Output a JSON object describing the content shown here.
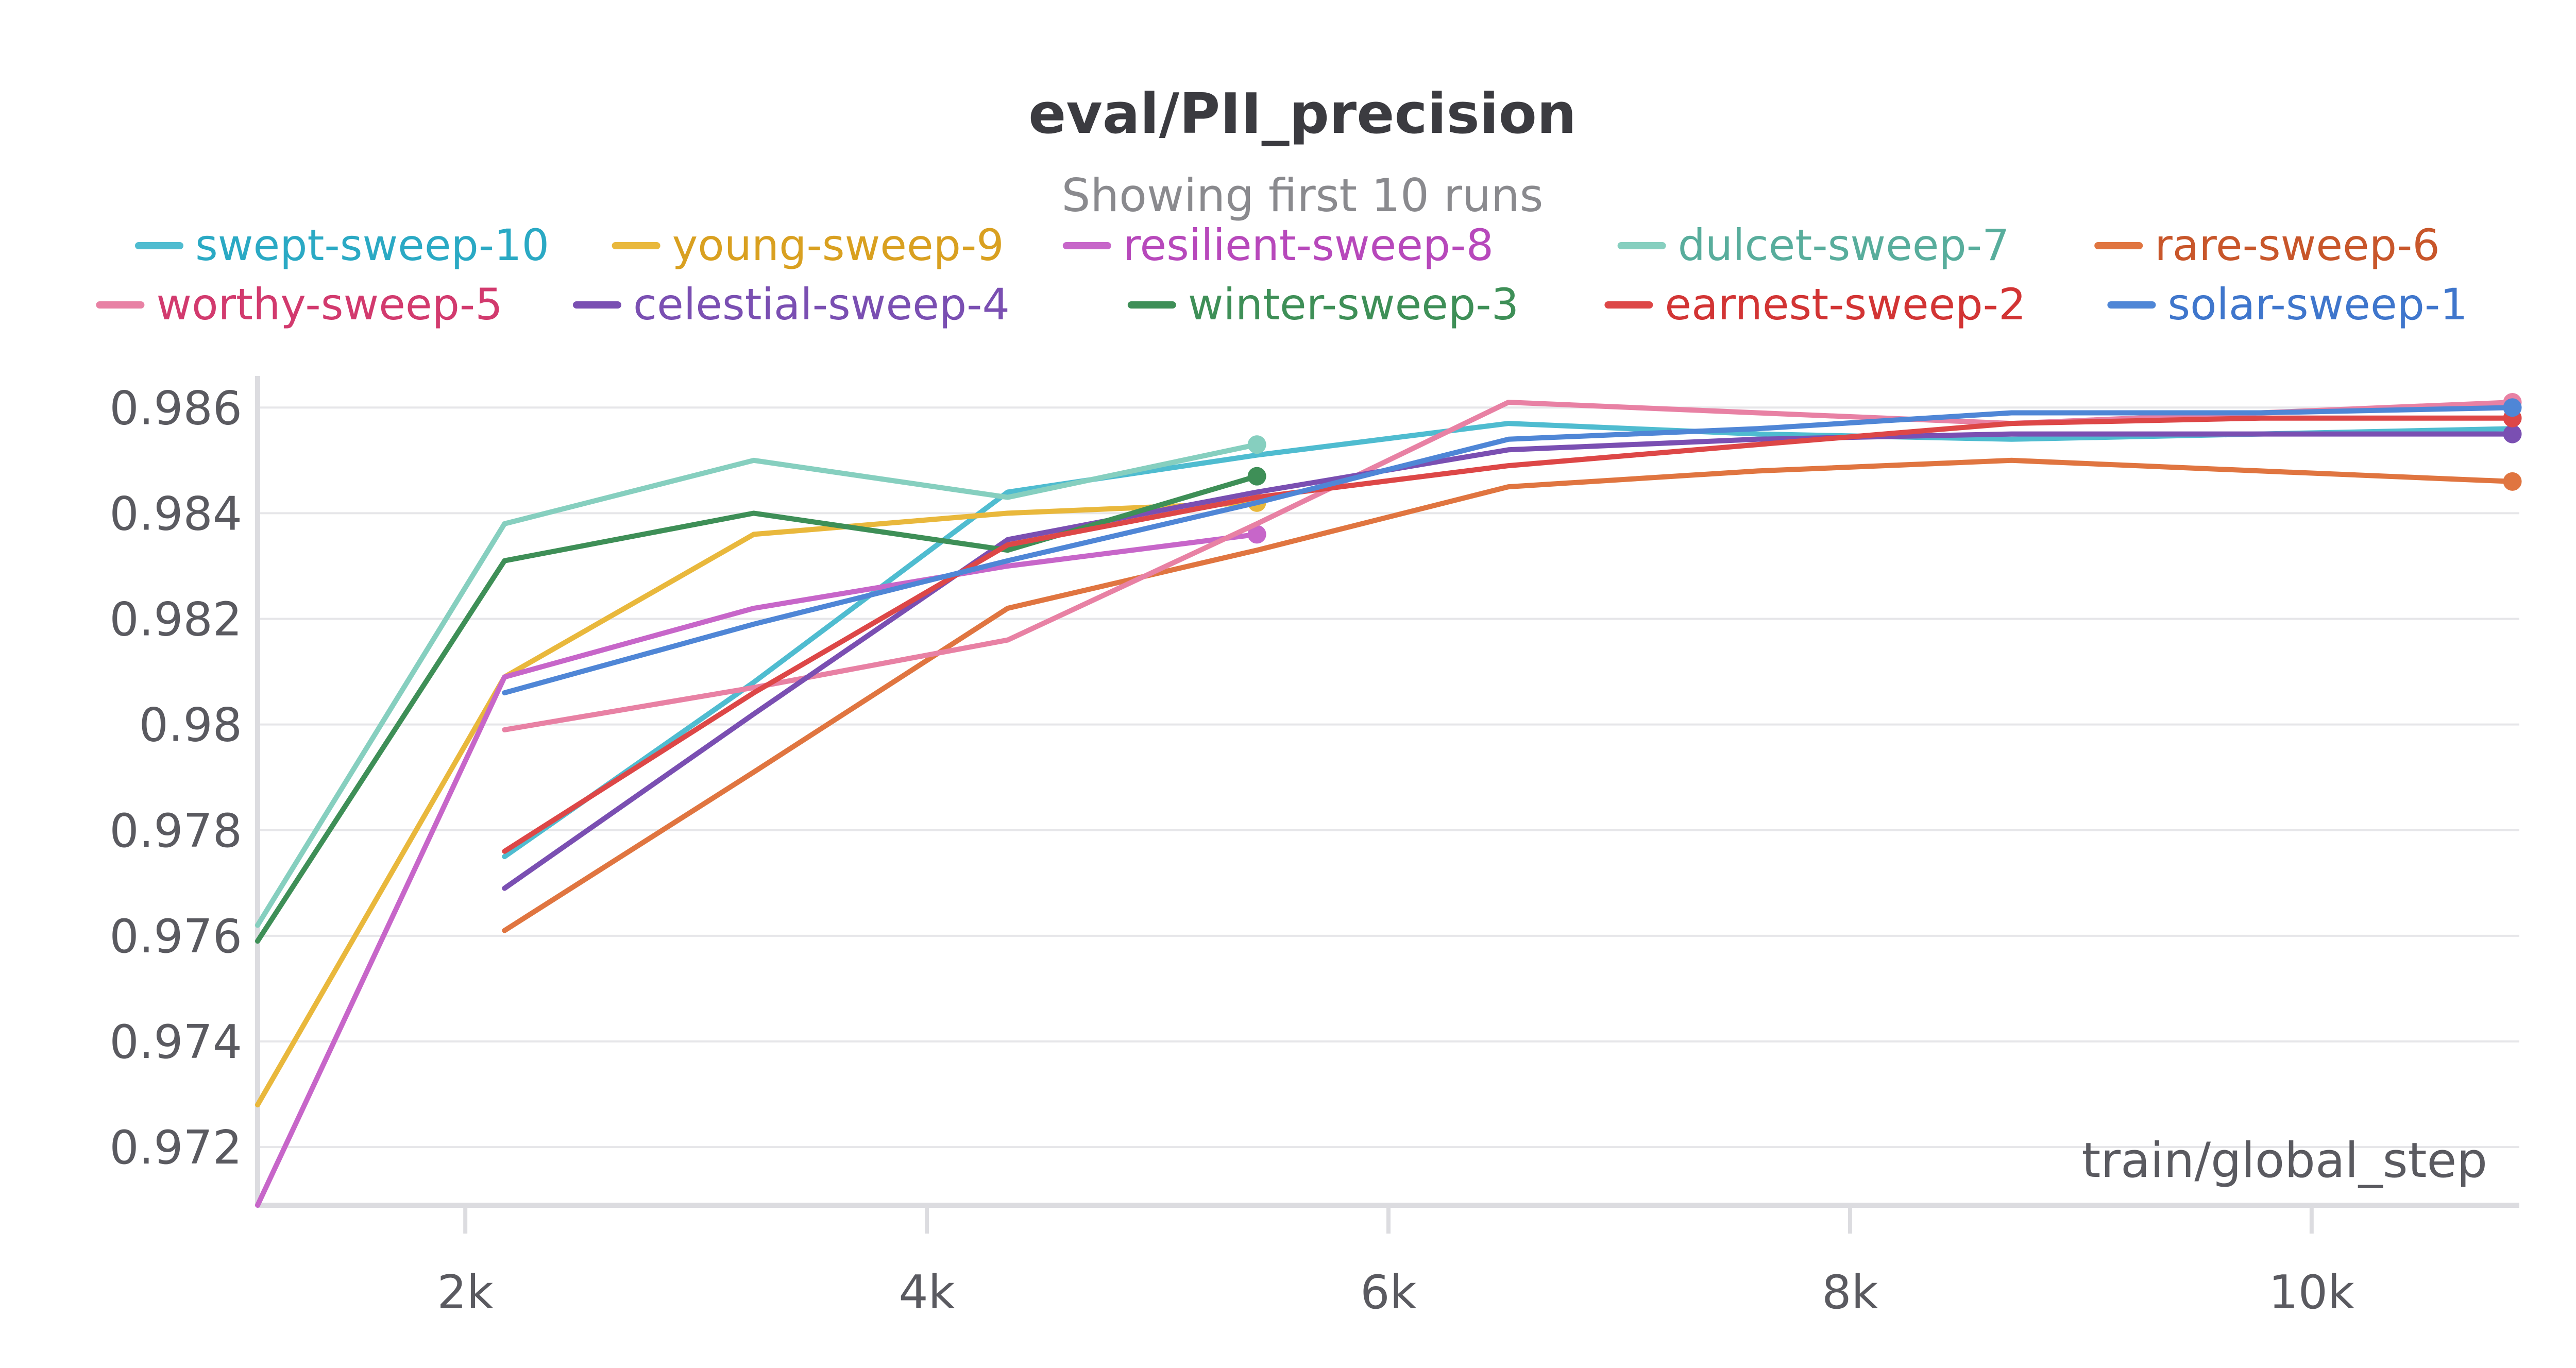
{
  "chart_data": {
    "type": "line",
    "title": "eval/PII_precision",
    "subtitle": "Showing first 10 runs",
    "xlabel": "train/global_step",
    "ylabel": "",
    "xlim": [
      1100,
      10900
    ],
    "ylim": [
      0.9709,
      0.9865
    ],
    "x_ticks": [
      2000,
      4000,
      6000,
      8000,
      10000
    ],
    "x_tick_labels": [
      "2k",
      "4k",
      "6k",
      "8k",
      "10k"
    ],
    "y_ticks": [
      0.972,
      0.974,
      0.976,
      0.978,
      0.98,
      0.982,
      0.984,
      0.986
    ],
    "y_tick_labels": [
      "0.972",
      "0.974",
      "0.976",
      "0.978",
      "0.98",
      "0.982",
      "0.984",
      "0.986"
    ],
    "grid": true,
    "legend_placement": "top",
    "series": [
      {
        "name": "swept-sweep-10",
        "color": "#4fbcd0",
        "text_color": "#2aa9c4",
        "end_marker": false,
        "x": [
          2170,
          3250,
          4350,
          5430,
          6520,
          7600,
          8700,
          9780,
          10870
        ],
        "y": [
          0.9775,
          0.9808,
          0.9844,
          0.9851,
          0.9857,
          0.9855,
          0.9854,
          0.9855,
          0.9856
        ]
      },
      {
        "name": "young-sweep-9",
        "color": "#e9b83c",
        "text_color": "#d9a020",
        "end_marker": true,
        "x": [
          1100,
          2170,
          3250,
          4350,
          5430
        ],
        "y": [
          0.9728,
          0.9809,
          0.9836,
          0.984,
          0.9842
        ]
      },
      {
        "name": "resilient-sweep-8",
        "color": "#c766c9",
        "text_color": "#b748bb",
        "end_marker": true,
        "x": [
          1100,
          2170,
          3250,
          4350,
          5430
        ],
        "y": [
          0.9709,
          0.9809,
          0.9822,
          0.983,
          0.9836
        ]
      },
      {
        "name": "dulcet-sweep-7",
        "color": "#86cfbf",
        "text_color": "#58ad9c",
        "end_marker": true,
        "x": [
          1100,
          2170,
          3250,
          4350,
          5430
        ],
        "y": [
          0.9762,
          0.9838,
          0.985,
          0.9843,
          0.9853
        ]
      },
      {
        "name": "rare-sweep-6",
        "color": "#e07540",
        "text_color": "#c8562a",
        "end_marker": true,
        "x": [
          2170,
          3250,
          4350,
          5430,
          6520,
          7600,
          8700,
          9780,
          10870
        ],
        "y": [
          0.9761,
          0.9791,
          0.9822,
          0.9833,
          0.9845,
          0.9848,
          0.985,
          0.9848,
          0.9846
        ]
      },
      {
        "name": "worthy-sweep-5",
        "color": "#e881a4",
        "text_color": "#d23a6e",
        "end_marker": true,
        "x": [
          2170,
          3250,
          4350,
          5430,
          6520,
          7600,
          8700,
          9780,
          10870
        ],
        "y": [
          0.9799,
          0.9807,
          0.9816,
          0.9838,
          0.9861,
          0.9859,
          0.9857,
          0.9859,
          0.9861
        ]
      },
      {
        "name": "celestial-sweep-4",
        "color": "#7a4fb2",
        "text_color": "#7a4fb2",
        "end_marker": true,
        "x": [
          2170,
          3250,
          4350,
          5430,
          6520,
          7600,
          8700,
          9780,
          10870
        ],
        "y": [
          0.9769,
          0.9802,
          0.9835,
          0.9844,
          0.9852,
          0.9854,
          0.9855,
          0.9855,
          0.9855
        ]
      },
      {
        "name": "winter-sweep-3",
        "color": "#3e8f57",
        "text_color": "#3e8f57",
        "end_marker": true,
        "x": [
          1100,
          2170,
          3250,
          4350,
          5430
        ],
        "y": [
          0.9759,
          0.9831,
          0.984,
          0.9833,
          0.9847
        ]
      },
      {
        "name": "earnest-sweep-2",
        "color": "#dd4747",
        "text_color": "#d23434",
        "end_marker": true,
        "x": [
          2170,
          3250,
          4350,
          5430,
          6520,
          7600,
          8700,
          9780,
          10870
        ],
        "y": [
          0.9776,
          0.9806,
          0.9834,
          0.9843,
          0.9849,
          0.9853,
          0.9857,
          0.9858,
          0.9858
        ]
      },
      {
        "name": "solar-sweep-1",
        "color": "#4f86d6",
        "text_color": "#3f76cc",
        "end_marker": true,
        "x": [
          2170,
          3250,
          4350,
          5430,
          6520,
          7600,
          8700,
          9780,
          10870
        ],
        "y": [
          0.9806,
          0.9819,
          0.9831,
          0.9842,
          0.9854,
          0.9856,
          0.9859,
          0.9859,
          0.986
        ]
      }
    ]
  }
}
